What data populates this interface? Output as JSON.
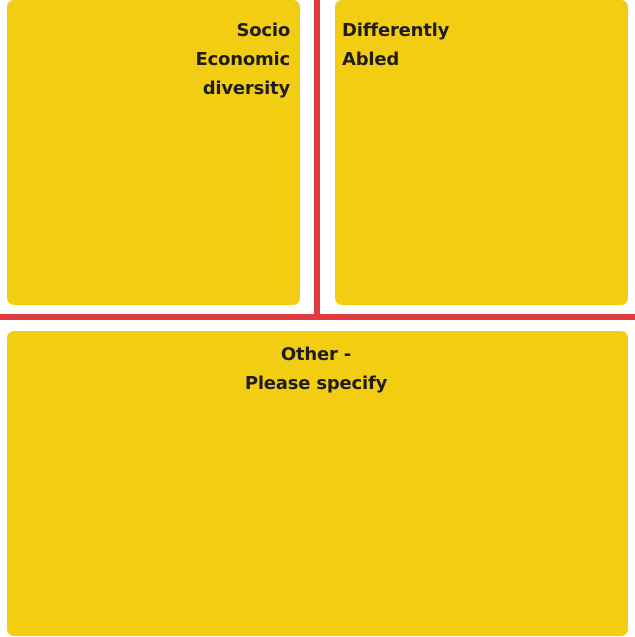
{
  "panels": {
    "top_left": {
      "lines": [
        "Socio",
        "Economic",
        "diversity"
      ]
    },
    "top_right": {
      "lines": [
        "Differently",
        "Abled"
      ]
    },
    "bottom": {
      "lines": [
        "Other -",
        "Please specify"
      ]
    }
  },
  "colors": {
    "panel_background": "#f2cd12",
    "divider": "#e13b3e",
    "text": "#1f1d1b",
    "page_background": "#ffffff"
  }
}
